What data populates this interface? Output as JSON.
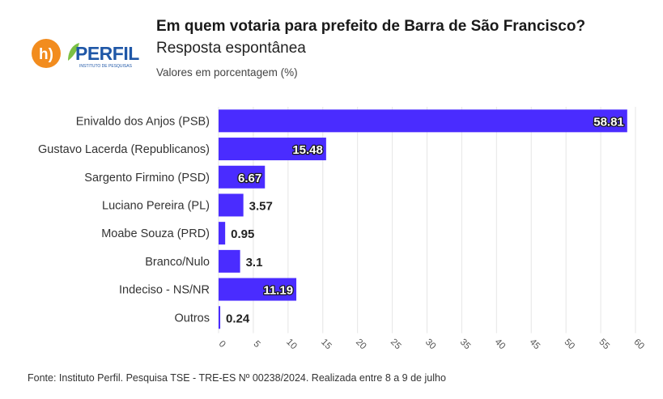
{
  "header": {
    "title": "Em quem votaria para prefeito de Barra de São Francisco?",
    "subtitle": "Resposta espontânea",
    "note": "Valores em porcentagem (%)"
  },
  "logos": {
    "left_mark": "h)",
    "brand_name": "PERFIL",
    "brand_tagline": "INSTITUTO DE PESQUISAS"
  },
  "source": "Fonte: Instituto Perfil. Pesquisa TSE - TRE-ES Nº 00238/2024. Realizada entre 8 a 9 de julho",
  "colors": {
    "bar": "#4a2cff",
    "grid": "#e6e6e6",
    "logo_orange": "#f28c1e",
    "logo_blue": "#1f57a7",
    "logo_green": "#7cc043"
  },
  "chart_data": {
    "type": "bar",
    "orientation": "horizontal",
    "categories": [
      "Enivaldo dos Anjos (PSB)",
      "Gustavo Lacerda (Republicanos)",
      "Sargento Firmino (PSD)",
      "Luciano Pereira (PL)",
      "Moabe Souza (PRD)",
      "Branco/Nulo",
      "Indeciso - NS/NR",
      "Outros"
    ],
    "values": [
      58.81,
      15.48,
      6.67,
      3.57,
      0.95,
      3.1,
      11.19,
      0.24
    ],
    "value_labels": [
      "58.81",
      "15.48",
      "6.67",
      "3.57",
      "0.95",
      "3.1",
      "11.19",
      "0.24"
    ],
    "xlim": [
      0,
      60
    ],
    "xticks": [
      0,
      5,
      10,
      15,
      20,
      25,
      30,
      35,
      40,
      45,
      50,
      55,
      60
    ],
    "xtick_labels": [
      "0",
      "5",
      "10",
      "15",
      "20",
      "25",
      "30",
      "35",
      "40",
      "45",
      "50",
      "55",
      "60"
    ],
    "grid": true,
    "legend": "none"
  }
}
